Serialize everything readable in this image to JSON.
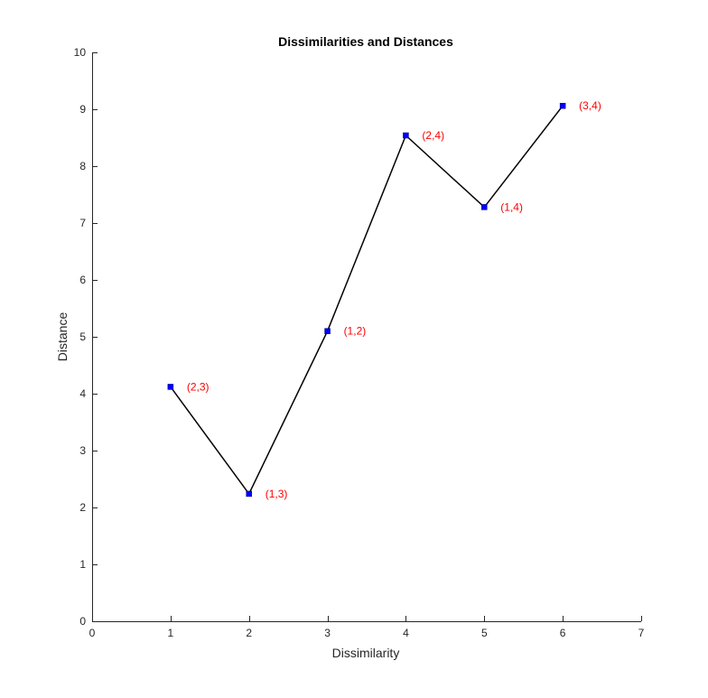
{
  "chart_data": {
    "type": "line",
    "title": "Dissimilarities and Distances",
    "xlabel": "Dissimilarity",
    "ylabel": "Distance",
    "xlim": [
      0,
      7
    ],
    "ylim": [
      0,
      10
    ],
    "xticks": [
      "0",
      "1",
      "2",
      "3",
      "4",
      "5",
      "6",
      "7"
    ],
    "yticks": [
      "0",
      "1",
      "2",
      "3",
      "4",
      "5",
      "6",
      "7",
      "8",
      "9",
      "10"
    ],
    "grid": false,
    "legend": false,
    "series": [
      {
        "x": [
          1,
          2,
          3,
          4,
          5,
          6
        ],
        "y": [
          4.12,
          2.24,
          5.1,
          8.54,
          7.28,
          9.06
        ],
        "labels": [
          "(2,3)",
          "(1,3)",
          "(1,2)",
          "(2,4)",
          "(1,4)",
          "(3,4)"
        ],
        "line_color": "#000000",
        "marker": "square",
        "marker_color": "#0000ff",
        "label_color": "#ff0000"
      }
    ]
  }
}
